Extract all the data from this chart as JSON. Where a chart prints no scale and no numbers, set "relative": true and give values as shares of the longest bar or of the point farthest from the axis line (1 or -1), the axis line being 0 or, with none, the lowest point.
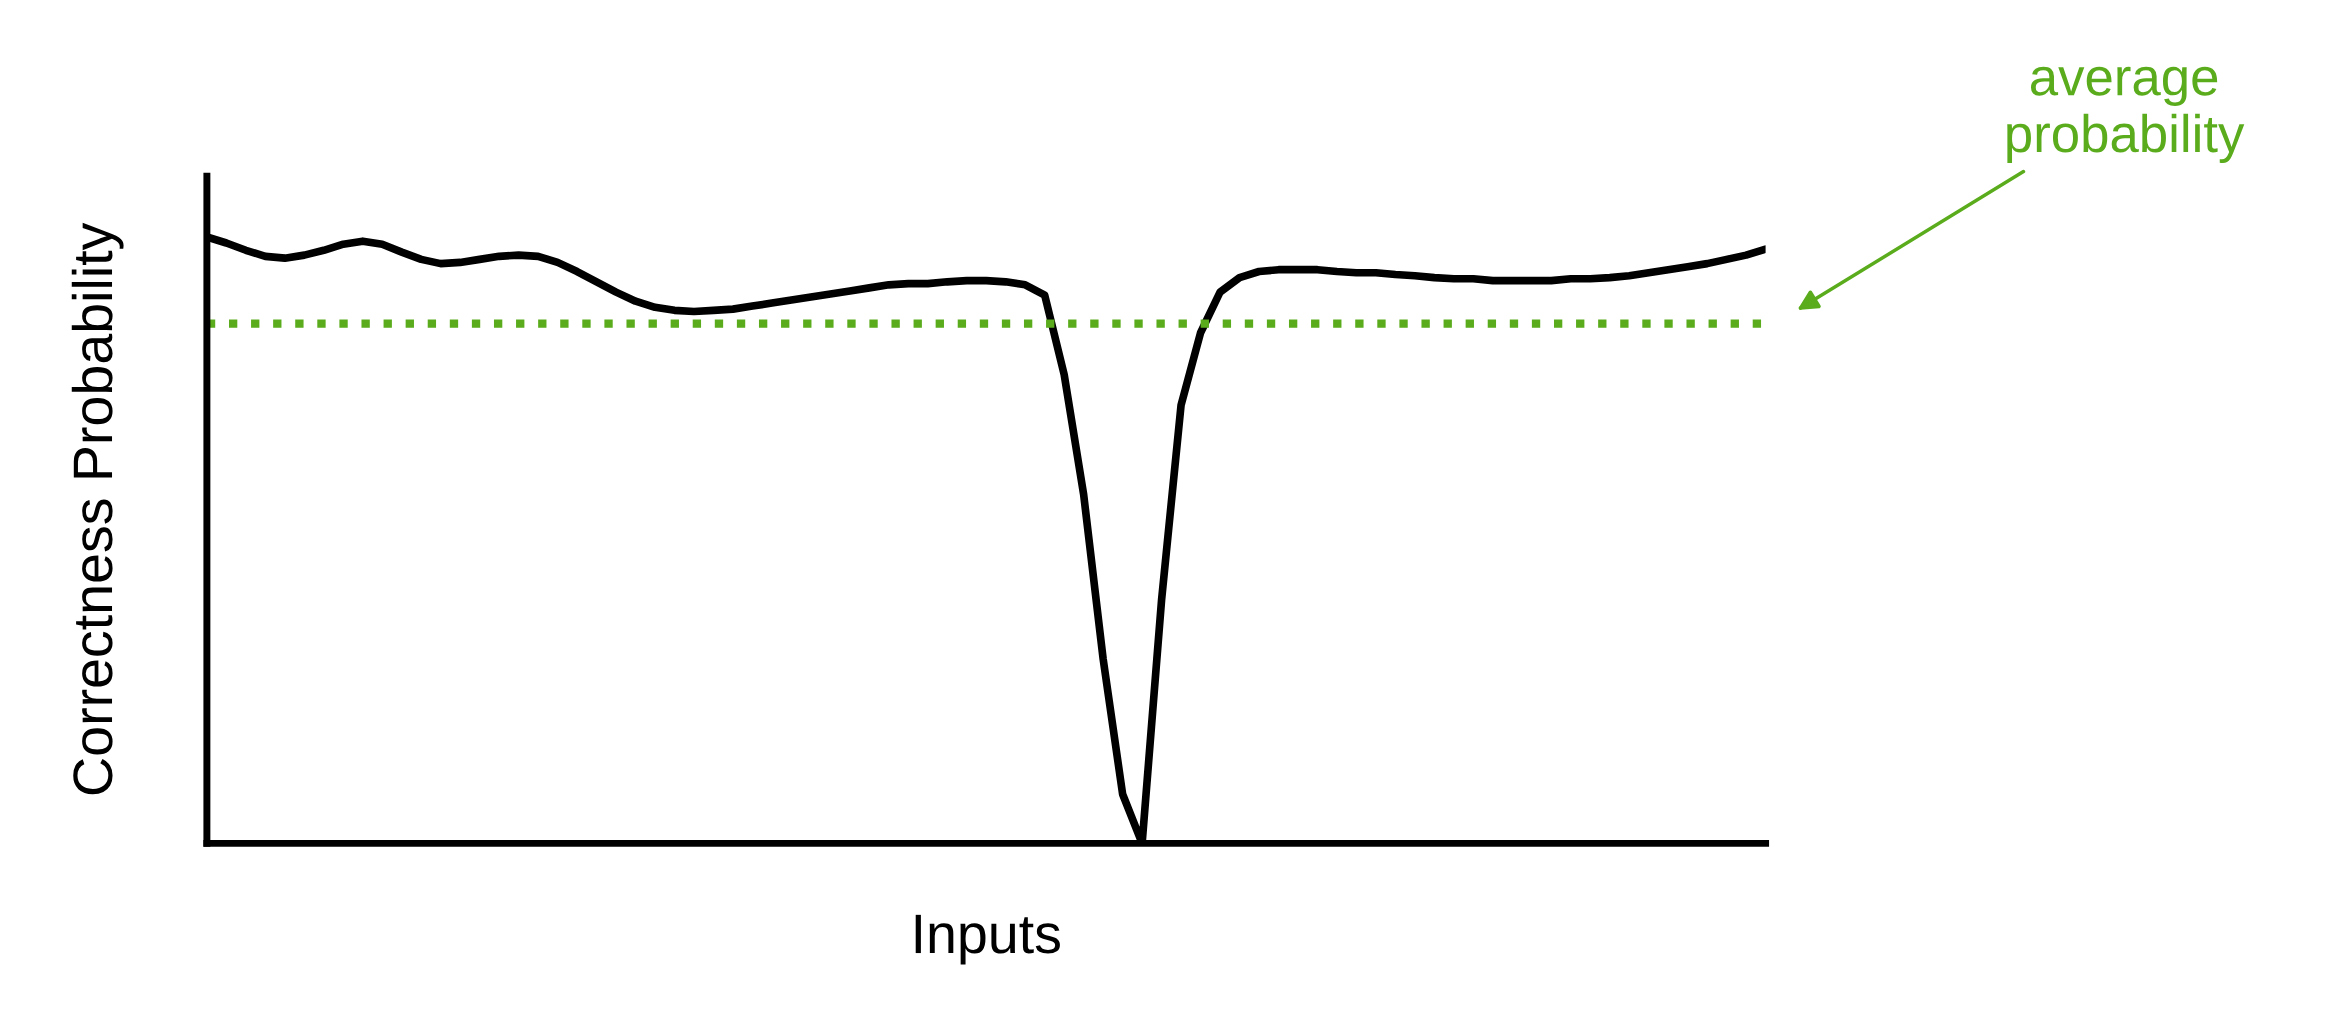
{
  "chart_data": {
    "type": "line",
    "relative": true,
    "xlabel": "Inputs",
    "ylabel": "Correctness Probability",
    "categories": [
      null,
      null,
      null,
      null,
      null,
      null,
      null,
      null,
      null,
      null,
      null,
      null,
      null,
      null,
      null,
      null,
      null,
      null,
      null,
      null,
      null,
      null,
      null,
      null,
      null,
      null,
      null,
      null,
      null,
      null,
      null,
      null,
      null,
      null,
      null,
      null,
      null,
      null,
      null,
      null,
      null,
      null,
      null,
      null,
      null,
      null,
      null,
      null,
      null,
      null,
      null,
      null,
      null,
      null,
      null,
      null,
      null,
      null,
      null,
      null,
      null,
      null,
      null,
      null,
      null,
      null,
      null,
      null,
      null,
      null,
      null,
      null,
      null,
      null,
      null,
      null,
      null,
      null,
      null,
      null,
      null
    ],
    "series": [
      {
        "color": "#000000",
        "values": [
          1.0,
          0.99,
          0.978,
          0.968,
          0.965,
          0.97,
          0.978,
          0.988,
          0.993,
          0.988,
          0.975,
          0.963,
          0.956,
          0.958,
          0.963,
          0.968,
          0.97,
          0.968,
          0.958,
          0.943,
          0.926,
          0.909,
          0.894,
          0.884,
          0.879,
          0.877,
          0.879,
          0.881,
          0.886,
          0.891,
          0.896,
          0.901,
          0.906,
          0.911,
          0.916,
          0.921,
          0.923,
          0.923,
          0.926,
          0.928,
          0.928,
          0.926,
          0.921,
          0.904,
          0.773,
          0.575,
          0.304,
          0.081,
          0,
          0.402,
          0.723,
          0.842,
          0.909,
          0.933,
          0.943,
          0.946,
          0.946,
          0.946,
          0.943,
          0.941,
          0.941,
          0.938,
          0.936,
          0.933,
          0.931,
          0.931,
          0.928,
          0.928,
          0.928,
          0.928,
          0.931,
          0.931,
          0.933,
          0.936,
          0.941,
          0.946,
          0.951,
          0.956,
          0.963,
          0.97,
          0.98
        ]
      }
    ],
    "ref_lines": [
      {
        "axis": "y",
        "value": 0.857,
        "color": "#5aac1c",
        "line_style": "dotted"
      }
    ],
    "annotations": [
      "average probability"
    ],
    "marker": "none",
    "line_style": "solid",
    "legend": false
  }
}
